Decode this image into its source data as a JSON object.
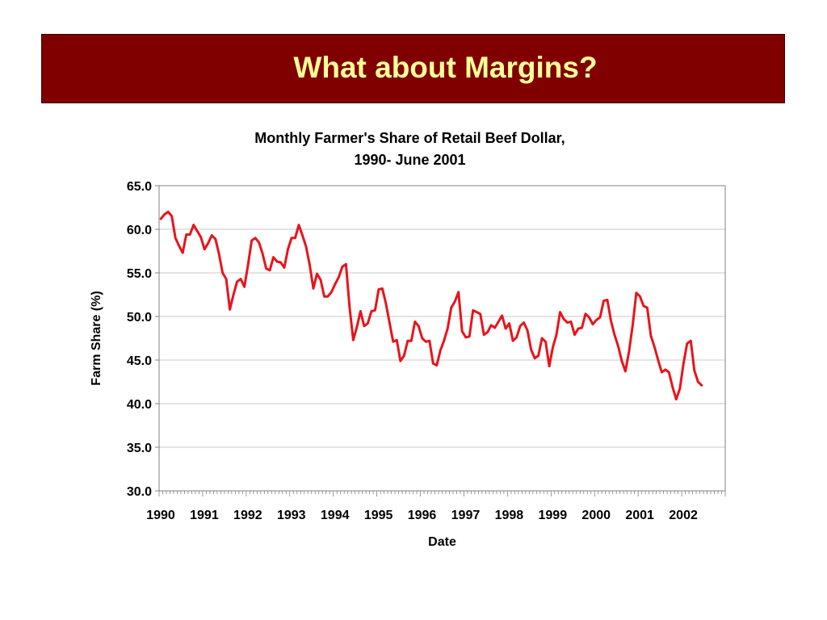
{
  "slide": {
    "title": "What about Margins?",
    "title_bar_color": "#800000",
    "title_text_color": "#ffff99"
  },
  "chart_data": {
    "type": "line",
    "title": "Monthly Farmer's Share of Retail Beef Dollar,",
    "subtitle": "1990- June 2001",
    "xlabel": "Date",
    "ylabel": "Farm Share (%)",
    "ylim": [
      30.0,
      65.0
    ],
    "yticks": [
      "30.0",
      "35.0",
      "40.0",
      "45.0",
      "50.0",
      "55.0",
      "60.0",
      "65.0"
    ],
    "xticks": [
      "1990",
      "1991",
      "1992",
      "1993",
      "1994",
      "1995",
      "1996",
      "1997",
      "1998",
      "1999",
      "2000",
      "2001",
      "2002"
    ],
    "x_start": "1990-01",
    "x_step": "month",
    "grid": "horizontal",
    "line_color": "#e8141b",
    "series": [
      {
        "values": [
          61.2,
          61.7,
          62.0,
          61.5,
          59.0,
          58.1,
          57.3,
          59.4,
          59.4,
          60.5,
          59.8,
          59.1,
          57.7,
          58.4,
          59.3,
          58.9,
          57.2,
          55.0,
          54.3,
          50.8,
          52.5,
          54.0,
          54.3,
          53.4,
          55.9,
          58.7,
          59.0,
          58.5,
          57.2,
          55.5,
          55.3,
          56.8,
          56.3,
          56.2,
          55.6,
          57.7,
          59.0,
          59.0,
          60.5,
          59.3,
          58.0,
          55.9,
          53.2,
          54.9,
          54.2,
          52.3,
          52.3,
          52.8,
          53.7,
          54.5,
          55.7,
          56.0,
          51.0,
          47.3,
          48.8,
          50.6,
          48.9,
          49.2,
          50.6,
          50.7,
          53.1,
          53.2,
          51.5,
          49.3,
          47.1,
          47.3,
          44.9,
          45.5,
          47.2,
          47.2,
          49.4,
          48.9,
          47.5,
          47.1,
          47.2,
          44.6,
          44.4,
          46.1,
          47.2,
          48.6,
          51.0,
          51.7,
          52.8,
          48.3,
          47.6,
          47.7,
          50.7,
          50.5,
          50.3,
          47.9,
          48.2,
          49.0,
          48.7,
          49.4,
          50.1,
          48.6,
          49.2,
          47.2,
          47.6,
          48.9,
          49.3,
          48.4,
          46.2,
          45.2,
          45.5,
          47.5,
          47.1,
          44.3,
          46.5,
          47.9,
          50.5,
          49.7,
          49.3,
          49.4,
          47.9,
          48.6,
          48.7,
          50.3,
          49.9,
          49.1,
          49.6,
          49.9,
          51.8,
          51.9,
          49.5,
          47.9,
          46.6,
          44.9,
          43.7,
          46.0,
          49.0,
          52.7,
          52.3,
          51.2,
          51.0,
          47.8,
          46.5,
          45.0,
          43.6,
          43.9,
          43.6,
          41.9,
          40.5,
          41.7,
          44.6,
          46.9,
          47.2,
          43.8,
          42.5,
          42.1
        ]
      }
    ]
  }
}
